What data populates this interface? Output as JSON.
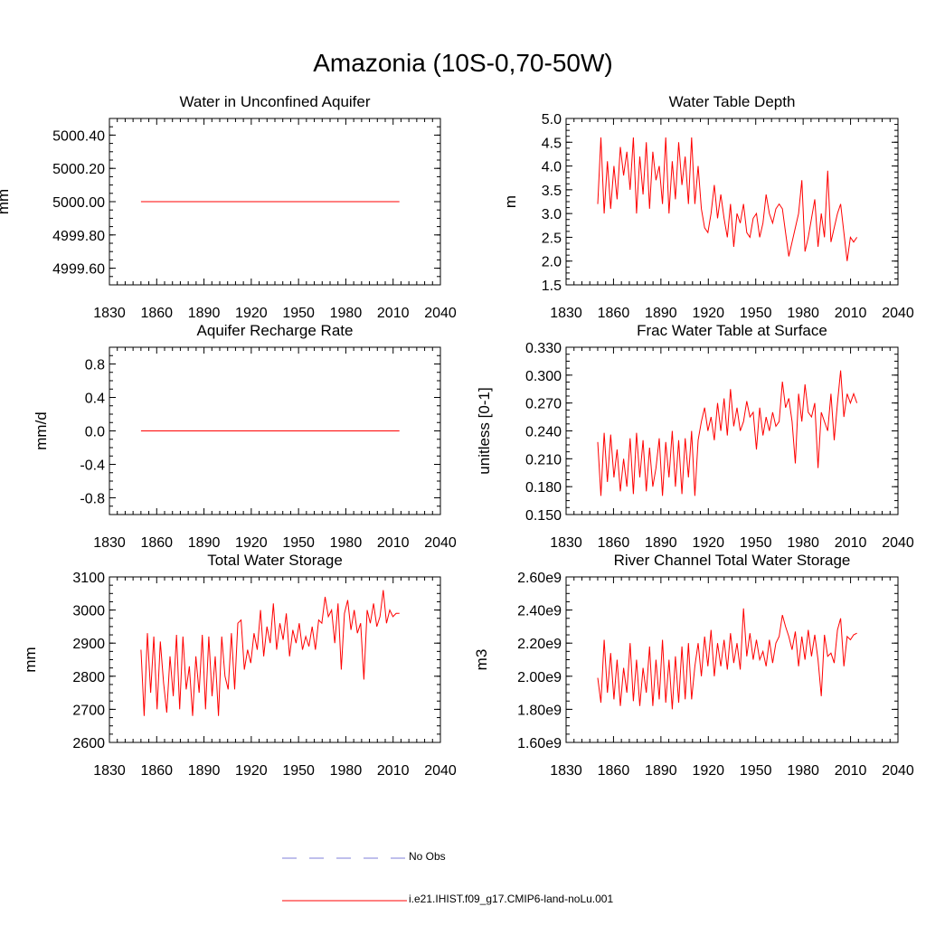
{
  "page_title": "Amazonia (10S-0,70-50W)",
  "legend": {
    "entries": [
      {
        "label": "No Obs",
        "color": "#7f7fd9",
        "style": "dashed"
      },
      {
        "label": "i.e21.IHIST.f09_g17.CMIP6-land-noLu.001",
        "color": "#ff0000",
        "style": "solid"
      }
    ]
  },
  "series_color": "#ff0000",
  "chart_data": [
    {
      "type": "line",
      "title": "Water in Unconfined Aquifer",
      "ylabel": "mm",
      "xlim": [
        1830,
        2040
      ],
      "ylim": [
        4999.5,
        5000.5
      ],
      "xticks": [
        1830,
        1860,
        1890,
        1920,
        1950,
        1980,
        2010,
        2040
      ],
      "yticks": [
        4999.6,
        4999.8,
        5000.0,
        5000.2,
        5000.4
      ],
      "ytick_labels": [
        "4999.60",
        "4999.80",
        "5000.00",
        "5000.20",
        "5000.40"
      ],
      "series": [
        {
          "x_start": 1850,
          "x_end": 2014,
          "values": [
            5000.0,
            5000.0
          ]
        }
      ]
    },
    {
      "type": "line",
      "title": "Water Table Depth",
      "ylabel": "m",
      "xlim": [
        1830,
        2040
      ],
      "ylim": [
        1.5,
        5.0
      ],
      "xticks": [
        1830,
        1860,
        1890,
        1920,
        1950,
        1980,
        2010,
        2040
      ],
      "yticks": [
        1.5,
        2.0,
        2.5,
        3.0,
        3.5,
        4.0,
        4.5,
        5.0
      ],
      "ytick_labels": [
        "1.5",
        "2.0",
        "2.5",
        "3.0",
        "3.5",
        "4.0",
        "4.5",
        "5.0"
      ],
      "series": [
        {
          "x_start": 1850,
          "x_end": 2014,
          "values": [
            3.2,
            4.6,
            3.0,
            4.1,
            3.1,
            4.0,
            3.3,
            4.4,
            3.8,
            4.3,
            3.5,
            4.6,
            3.0,
            4.2,
            3.4,
            4.5,
            3.1,
            4.3,
            3.7,
            4.0,
            3.2,
            4.6,
            3.0,
            4.1,
            3.3,
            4.5,
            3.6,
            4.2,
            3.2,
            4.6,
            3.2,
            4.0,
            3.1,
            2.7,
            2.6,
            3.0,
            3.6,
            2.9,
            3.4,
            2.9,
            2.5,
            3.2,
            2.3,
            3.0,
            2.8,
            3.2,
            2.6,
            2.5,
            2.9,
            3.0,
            2.5,
            2.8,
            3.4,
            3.0,
            2.8,
            3.1,
            3.2,
            3.1,
            2.6,
            2.1,
            2.4,
            2.7,
            3.0,
            3.7,
            2.2,
            2.5,
            2.9,
            3.3,
            2.3,
            3.0,
            2.5,
            3.9,
            2.4,
            2.7,
            3.0,
            3.2,
            2.6,
            2.0,
            2.5,
            2.4,
            2.5
          ]
        }
      ]
    },
    {
      "type": "line",
      "title": "Aquifer Recharge Rate",
      "ylabel": "mm/d",
      "xlim": [
        1830,
        2040
      ],
      "ylim": [
        -1.0,
        1.0
      ],
      "xticks": [
        1830,
        1860,
        1890,
        1920,
        1950,
        1980,
        2010,
        2040
      ],
      "yticks": [
        -0.8,
        -0.4,
        0.0,
        0.4,
        0.8
      ],
      "ytick_labels": [
        "-0.8",
        "-0.4",
        "0.0",
        "0.4",
        "0.8"
      ],
      "series": [
        {
          "x_start": 1850,
          "x_end": 2014,
          "values": [
            0.0,
            0.0
          ]
        }
      ]
    },
    {
      "type": "line",
      "title": "Frac Water Table at Surface",
      "ylabel": "unitless [0-1]",
      "xlim": [
        1830,
        2040
      ],
      "ylim": [
        0.15,
        0.33
      ],
      "xticks": [
        1830,
        1860,
        1890,
        1920,
        1950,
        1980,
        2010,
        2040
      ],
      "yticks": [
        0.15,
        0.18,
        0.21,
        0.24,
        0.27,
        0.3,
        0.33
      ],
      "ytick_labels": [
        "0.150",
        "0.180",
        "0.210",
        "0.240",
        "0.270",
        "0.300",
        "0.330"
      ],
      "series": [
        {
          "x_start": 1850,
          "x_end": 2014,
          "values": [
            0.228,
            0.17,
            0.238,
            0.185,
            0.236,
            0.19,
            0.22,
            0.175,
            0.21,
            0.18,
            0.232,
            0.172,
            0.238,
            0.19,
            0.23,
            0.175,
            0.222,
            0.18,
            0.2,
            0.232,
            0.17,
            0.228,
            0.19,
            0.24,
            0.18,
            0.23,
            0.172,
            0.232,
            0.19,
            0.24,
            0.17,
            0.23,
            0.25,
            0.265,
            0.24,
            0.255,
            0.23,
            0.27,
            0.24,
            0.275,
            0.235,
            0.285,
            0.245,
            0.265,
            0.24,
            0.25,
            0.272,
            0.255,
            0.26,
            0.22,
            0.265,
            0.235,
            0.255,
            0.24,
            0.26,
            0.245,
            0.25,
            0.293,
            0.265,
            0.275,
            0.25,
            0.205,
            0.28,
            0.25,
            0.29,
            0.26,
            0.255,
            0.27,
            0.2,
            0.26,
            0.25,
            0.24,
            0.28,
            0.23,
            0.27,
            0.305,
            0.255,
            0.28,
            0.27,
            0.28,
            0.27
          ]
        }
      ]
    },
    {
      "type": "line",
      "title": "Total Water Storage",
      "ylabel": "mm",
      "xlim": [
        1830,
        2040
      ],
      "ylim": [
        2600,
        3100
      ],
      "xticks": [
        1830,
        1860,
        1890,
        1920,
        1950,
        1980,
        2010,
        2040
      ],
      "yticks": [
        2600,
        2700,
        2800,
        2900,
        3000,
        3100
      ],
      "ytick_labels": [
        "2600",
        "2700",
        "2800",
        "2900",
        "3000",
        "3100"
      ],
      "series": [
        {
          "x_start": 1850,
          "x_end": 2014,
          "values": [
            2880,
            2680,
            2930,
            2750,
            2920,
            2700,
            2905,
            2780,
            2690,
            2860,
            2740,
            2925,
            2700,
            2920,
            2760,
            2830,
            2680,
            2860,
            2750,
            2925,
            2700,
            2920,
            2740,
            2860,
            2680,
            2920,
            2800,
            2760,
            2930,
            2760,
            2960,
            2970,
            2820,
            2880,
            2840,
            2930,
            2880,
            3000,
            2860,
            2950,
            2900,
            3020,
            2880,
            2960,
            2910,
            2990,
            2860,
            2940,
            2900,
            2960,
            2880,
            2920,
            2890,
            2950,
            2880,
            2970,
            2960,
            3040,
            2980,
            3000,
            2900,
            3020,
            2820,
            2990,
            3030,
            2940,
            3000,
            2930,
            2960,
            2790,
            3000,
            2960,
            3020,
            2950,
            2980,
            3060,
            2960,
            3000,
            2980,
            2990,
            2990
          ]
        }
      ]
    },
    {
      "type": "line",
      "title": "River Channel Total Water Storage",
      "ylabel": "m3",
      "xlim": [
        1830,
        2040
      ],
      "ylim": [
        1600000000.0,
        2600000000.0
      ],
      "xticks": [
        1830,
        1860,
        1890,
        1920,
        1950,
        1980,
        2010,
        2040
      ],
      "yticks": [
        1600000000.0,
        1800000000.0,
        2000000000.0,
        2200000000.0,
        2400000000.0,
        2600000000.0
      ],
      "ytick_labels": [
        "1.60e9",
        "1.80e9",
        "2.00e9",
        "2.20e9",
        "2.40e9",
        "2.60e9"
      ],
      "series": [
        {
          "x_start": 1850,
          "x_end": 2014,
          "values": [
            1990000000.0,
            1840000000.0,
            2220000000.0,
            1900000000.0,
            2140000000.0,
            1860000000.0,
            2100000000.0,
            1820000000.0,
            2050000000.0,
            1900000000.0,
            2200000000.0,
            1850000000.0,
            2100000000.0,
            1820000000.0,
            2050000000.0,
            1900000000.0,
            2180000000.0,
            1820000000.0,
            2100000000.0,
            1860000000.0,
            2220000000.0,
            1840000000.0,
            2100000000.0,
            1800000000.0,
            2120000000.0,
            1840000000.0,
            2180000000.0,
            1860000000.0,
            2200000000.0,
            1860000000.0,
            2060000000.0,
            2200000000.0,
            2000000000.0,
            2240000000.0,
            2060000000.0,
            2280000000.0,
            2000000000.0,
            2200000000.0,
            2060000000.0,
            2220000000.0,
            2040000000.0,
            2260000000.0,
            2080000000.0,
            2200000000.0,
            2040000000.0,
            2410000000.0,
            2120000000.0,
            2260000000.0,
            2100000000.0,
            2220000000.0,
            2100000000.0,
            2150000000.0,
            2060000000.0,
            2220000000.0,
            2080000000.0,
            2200000000.0,
            2240000000.0,
            2370000000.0,
            2300000000.0,
            2240000000.0,
            2160000000.0,
            2270000000.0,
            2060000000.0,
            2240000000.0,
            2100000000.0,
            2280000000.0,
            2120000000.0,
            2250000000.0,
            2100000000.0,
            1880000000.0,
            2250000000.0,
            2120000000.0,
            2140000000.0,
            2080000000.0,
            2280000000.0,
            2350000000.0,
            2060000000.0,
            2240000000.0,
            2220000000.0,
            2250000000.0,
            2260000000.0
          ]
        }
      ]
    }
  ]
}
